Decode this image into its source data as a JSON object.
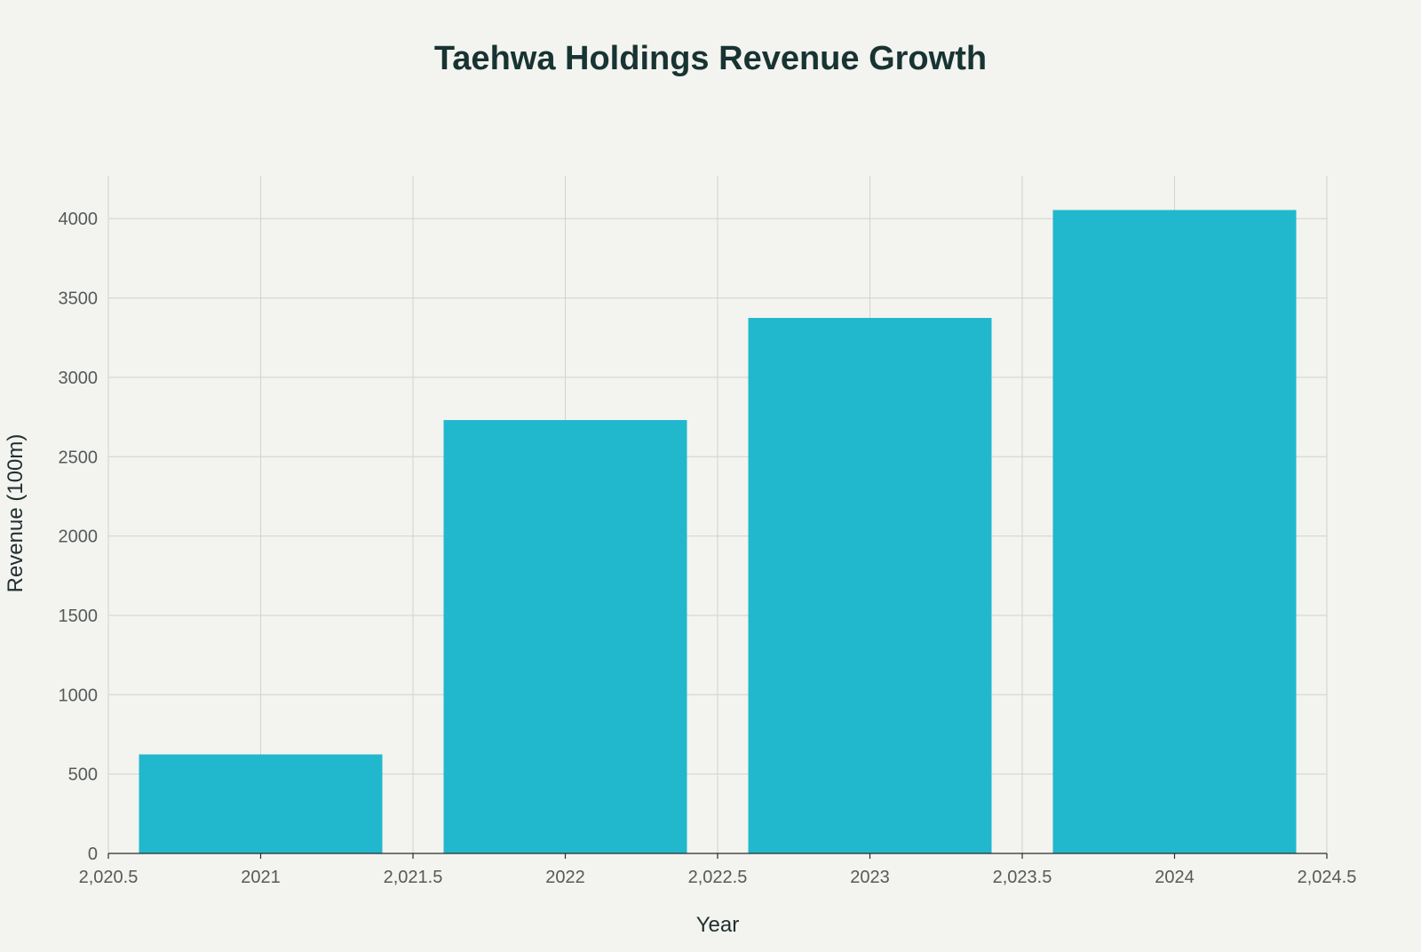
{
  "chart_data": {
    "type": "bar",
    "title": "Taehwa Holdings Revenue Growth",
    "xlabel": "Year",
    "ylabel": "Revenue (100m)",
    "categories": [
      "2021",
      "2022",
      "2023",
      "2024"
    ],
    "x": [
      2021,
      2022,
      2023,
      2024
    ],
    "values": [
      625,
      2730,
      3375,
      4055
    ],
    "bar_width": 0.8,
    "xlim": [
      2020.5,
      2024.5
    ],
    "ylim": [
      0,
      4270
    ],
    "x_ticks": [
      2020.5,
      2021,
      2021.5,
      2022,
      2022.5,
      2023,
      2023.5,
      2024,
      2024.5
    ],
    "x_tick_labels": [
      "2,020.5",
      "2021",
      "2,021.5",
      "2022",
      "2,022.5",
      "2023",
      "2,023.5",
      "2024",
      "2,024.5"
    ],
    "y_ticks": [
      0,
      500,
      1000,
      1500,
      2000,
      2500,
      3000,
      3500,
      4000
    ],
    "y_tick_labels": [
      "0",
      "500",
      "1000",
      "1500",
      "2000",
      "2500",
      "3000",
      "3500",
      "4000"
    ],
    "grid": true,
    "bar_color": "#21b8cd",
    "background": "#f3f3ef"
  }
}
